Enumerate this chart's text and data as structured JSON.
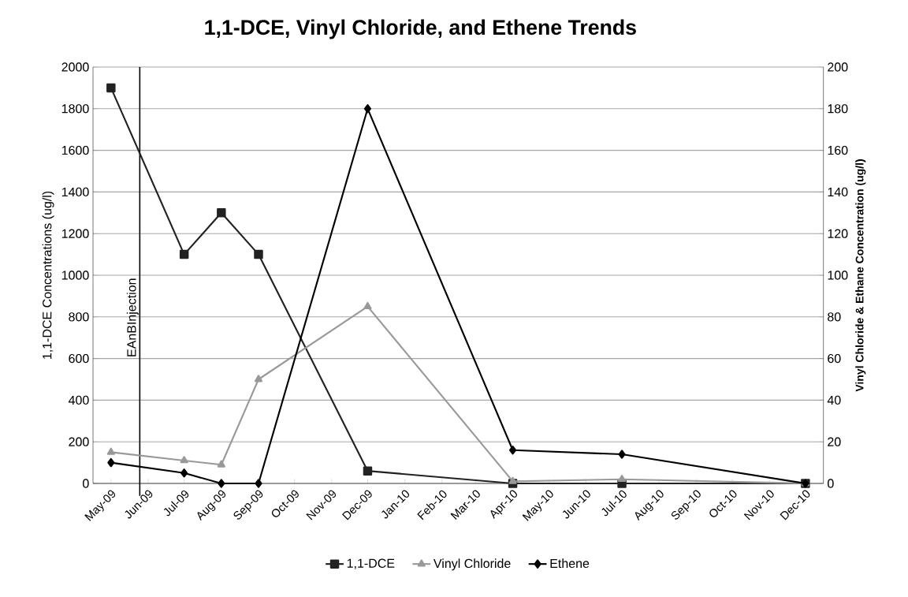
{
  "chart_data": {
    "type": "line",
    "title": "1,1-DCE, Vinyl Chloride, and Ethene Trends",
    "ylabel": "1,1-DCE Concentrations (ug/l)",
    "y2label": "Vinyl Chloride & Ethane Concentration (ug/l)",
    "x": [
      "2009-05",
      "2009-07",
      "2009-08",
      "2009-09",
      "2009-12",
      "2010-04",
      "2010-07",
      "2010-12"
    ],
    "series": [
      {
        "name": "1,1-DCE",
        "color": "#222222",
        "marker": "square",
        "values": [
          1900,
          1100,
          1300,
          1100,
          60,
          0,
          0,
          0
        ]
      },
      {
        "name": "Vinyl Chloride",
        "color": "#999999",
        "marker": "triangle",
        "axis": "y2",
        "values": [
          15,
          11,
          9,
          50,
          85,
          1,
          2,
          0
        ]
      },
      {
        "name": "Ethene",
        "color": "#000000",
        "marker": "diamond",
        "axis": "y2",
        "values": [
          10,
          5,
          0,
          0,
          180,
          16,
          14,
          0
        ]
      }
    ],
    "xlim": [
      "2009-04-16",
      "2010-12-16"
    ],
    "xticks": [
      {
        "value": "2009-05",
        "label": "May-09"
      },
      {
        "value": "2009-06",
        "label": "Jun-09"
      },
      {
        "value": "2009-07",
        "label": "Jul-09"
      },
      {
        "value": "2009-08",
        "label": "Aug-09"
      },
      {
        "value": "2009-09",
        "label": "Sep-09"
      },
      {
        "value": "2009-10",
        "label": "Oct-09"
      },
      {
        "value": "2009-11",
        "label": "Nov-09"
      },
      {
        "value": "2009-12",
        "label": "Dec-09"
      },
      {
        "value": "2010-01",
        "label": "Jan-10"
      },
      {
        "value": "2010-02",
        "label": "Feb-10"
      },
      {
        "value": "2010-03",
        "label": "Mar-10"
      },
      {
        "value": "2010-04",
        "label": "Apr-10"
      },
      {
        "value": "2010-05",
        "label": "May-10"
      },
      {
        "value": "2010-06",
        "label": "Jun-10"
      },
      {
        "value": "2010-07",
        "label": "Jul-10"
      },
      {
        "value": "2010-08",
        "label": "Aug-10"
      },
      {
        "value": "2010-09",
        "label": "Sep-10"
      },
      {
        "value": "2010-10",
        "label": "Oct-10"
      },
      {
        "value": "2010-11",
        "label": "Nov-10"
      },
      {
        "value": "2010-12",
        "label": "Dec-10"
      }
    ],
    "ylim": [
      0,
      2000
    ],
    "yticks": [
      0,
      200,
      400,
      600,
      800,
      1000,
      1200,
      1400,
      1600,
      1800,
      2000
    ],
    "y2lim": [
      0,
      200
    ],
    "y2ticks": [
      0,
      20,
      40,
      60,
      80,
      100,
      120,
      140,
      160,
      180,
      200
    ],
    "ref_lines": [
      {
        "axis": "x",
        "value": "2009-05-25",
        "label": "EAnBInjection",
        "color": "#000000"
      }
    ],
    "grid": "y",
    "legend": "bottom",
    "line_style": "solid"
  }
}
